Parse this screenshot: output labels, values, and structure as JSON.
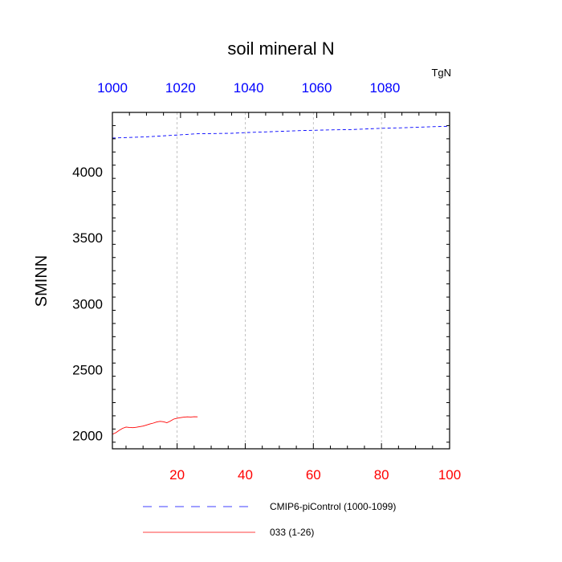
{
  "chart_data": {
    "type": "line",
    "title": "soil mineral N",
    "units": "TgN",
    "ylabel": "SMINN",
    "bottom_axis": {
      "range": [
        1,
        100
      ],
      "ticks": [
        20,
        40,
        60,
        80,
        100
      ],
      "color": "#ff0000"
    },
    "top_axis": {
      "range": [
        1000,
        1099
      ],
      "ticks": [
        1000,
        1020,
        1040,
        1060,
        1080
      ],
      "color": "#0000ff"
    },
    "y_axis": {
      "range": [
        1900,
        4450
      ],
      "ticks": [
        2000,
        2500,
        3000,
        3500,
        4000
      ]
    },
    "vertical_grid_at_bottom_ticks": [
      20,
      40,
      60,
      80
    ],
    "series": [
      {
        "name": "CMIP6-piControl (1000-1099)",
        "color": "#0000ff",
        "dash": "dashed",
        "axis": "top",
        "x": [
          1000,
          1005,
          1010,
          1015,
          1020,
          1025,
          1030,
          1035,
          1040,
          1045,
          1050,
          1055,
          1060,
          1065,
          1070,
          1075,
          1080,
          1085,
          1090,
          1095,
          1099
        ],
        "y": [
          4255,
          4260,
          4265,
          4272,
          4280,
          4288,
          4290,
          4292,
          4298,
          4302,
          4307,
          4312,
          4315,
          4318,
          4320,
          4325,
          4330,
          4333,
          4338,
          4342,
          4345
        ]
      },
      {
        "name": "033 (1-26)",
        "color": "#ff0000",
        "dash": "solid",
        "axis": "bottom",
        "x": [
          1,
          2,
          3,
          4,
          5,
          6,
          7,
          8,
          9,
          10,
          11,
          12,
          13,
          14,
          15,
          16,
          17,
          18,
          19,
          20,
          21,
          22,
          23,
          24,
          25,
          26
        ],
        "y": [
          2010,
          2022,
          2040,
          2055,
          2065,
          2062,
          2060,
          2063,
          2068,
          2072,
          2080,
          2088,
          2095,
          2103,
          2108,
          2105,
          2098,
          2110,
          2125,
          2132,
          2136,
          2140,
          2142,
          2141,
          2143,
          2142
        ]
      }
    ],
    "legend": {
      "placement": "bottom",
      "entries": [
        "CMIP6-piControl (1000-1099)",
        "033 (1-26)"
      ]
    }
  }
}
